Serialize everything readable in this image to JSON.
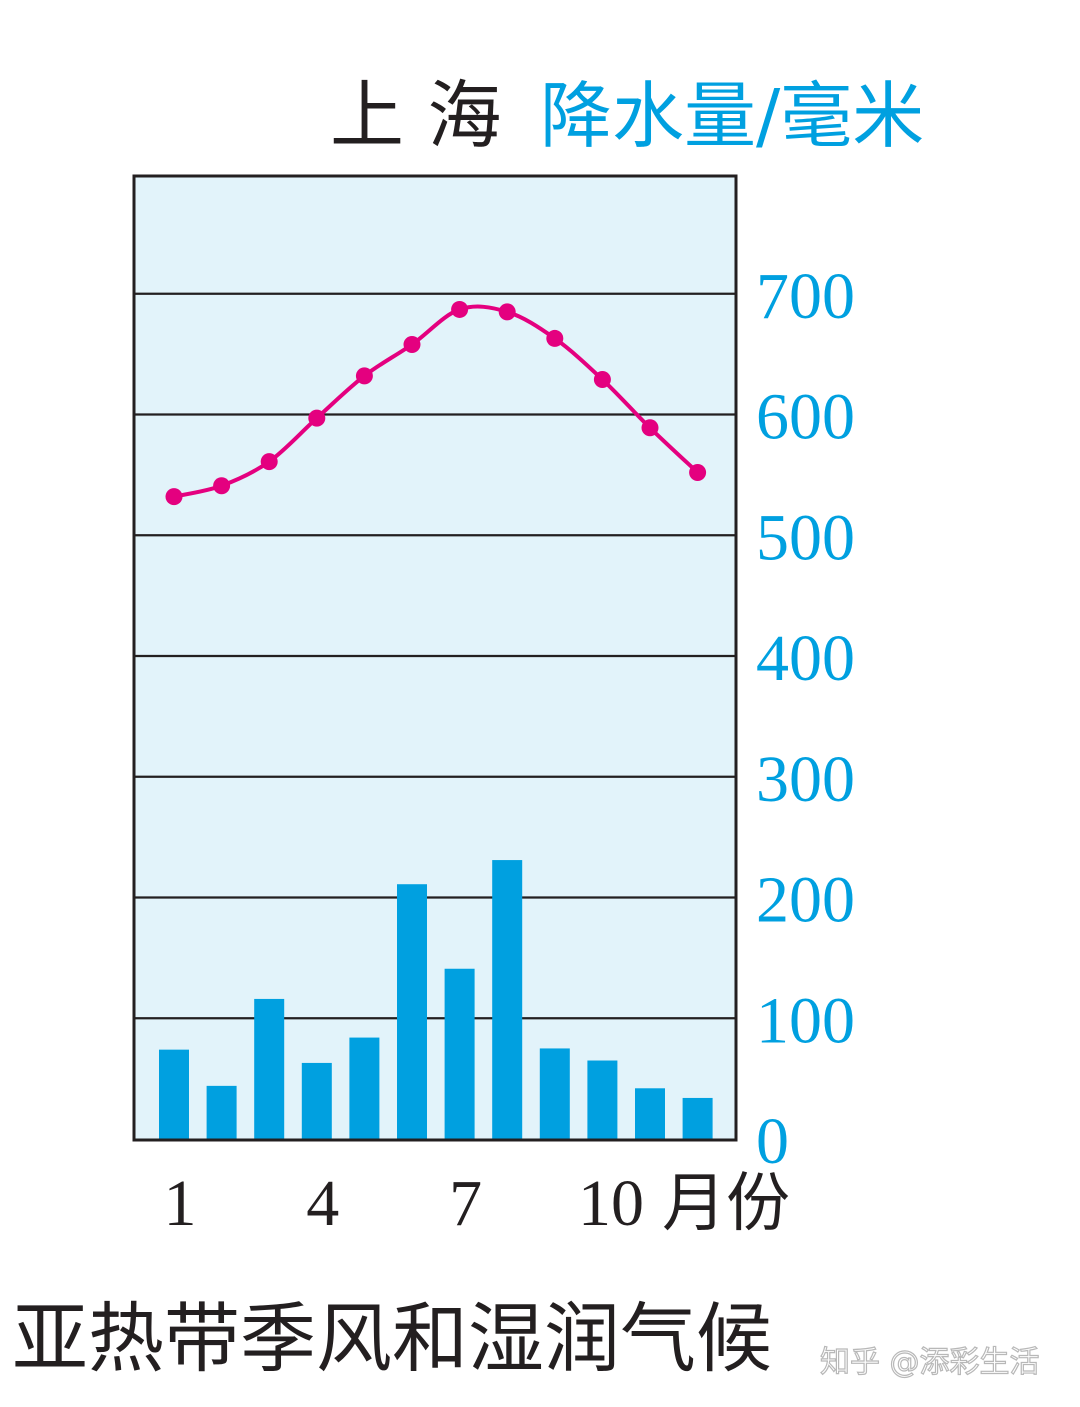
{
  "header": {
    "city": "上 海",
    "unit_label": "降水量/毫米"
  },
  "caption": "亚热带季风和湿润气候",
  "watermark": "知乎 @添彩生活",
  "colors": {
    "plot_background": "#e2f3fa",
    "bars": "#00a0e0",
    "line": "#e4007f",
    "axis_text": "#00a0e0",
    "grid": "#231f20"
  },
  "chart_data": {
    "type": "bar",
    "months": [
      1,
      2,
      3,
      4,
      5,
      6,
      7,
      8,
      9,
      10,
      11,
      12
    ],
    "x_tick_labels": [
      {
        "month": 1,
        "label": "1"
      },
      {
        "month": 4,
        "label": "4"
      },
      {
        "month": 7,
        "label": "7"
      },
      {
        "month": 10,
        "label": "10"
      }
    ],
    "x_unit": "月份",
    "ylabel": "降水量/毫米",
    "ylim": [
      0,
      800
    ],
    "y_ticks": [
      0,
      100,
      200,
      300,
      400,
      500,
      600,
      700
    ],
    "grid": true,
    "series": [
      {
        "kind": "bar",
        "values": [
          74,
          44,
          116,
          63,
          84,
          211,
          141,
          231,
          75,
          65,
          42,
          34
        ]
      },
      {
        "kind": "line",
        "values": [
          532,
          541,
          561,
          597,
          632,
          658,
          687,
          685,
          663,
          629,
          589,
          552
        ]
      }
    ]
  }
}
